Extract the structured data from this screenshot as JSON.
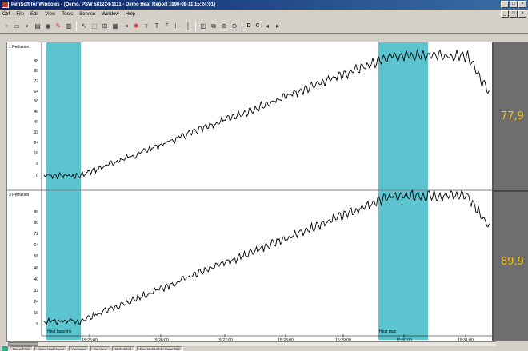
{
  "app": {
    "title": "PeriSoft for Windows - [Demo, PSW 581224-1111 - Demo Heat Report 1996-08-11 15:24:01]"
  },
  "window_controls": [
    "_",
    "□",
    "×"
  ],
  "mdi_controls": [
    "_",
    "□",
    "×"
  ],
  "menu": [
    "Ctrl",
    "File",
    "Edit",
    "View",
    "Tools",
    "Service",
    "Window",
    "Help"
  ],
  "toolbar": {
    "icons": [
      "new-icon",
      "open-icon",
      "save-icon",
      "print-preview-icon",
      "record-icon",
      "marker-icon",
      "print-icon",
      "pointer-icon",
      "select-icon",
      "zoom-box-icon",
      "grid-icon",
      "cursor-icon",
      "mark-icon",
      "text-icon",
      "text-up-icon",
      "text-down-icon",
      "range-icon",
      "crosshair-icon",
      "split-icon",
      "copy-icon",
      "zoom-in-icon",
      "zoom-out-icon"
    ],
    "letters": [
      "D",
      "C"
    ]
  },
  "panels": [
    {
      "label": "1 Perfusion",
      "readout": "77,9",
      "yticks": [
        "88",
        "80",
        "72",
        "64",
        "56",
        "48",
        "40",
        "32",
        "24",
        "16",
        "8",
        "0"
      ]
    },
    {
      "label": "3 Perfusion",
      "readout": "89,9",
      "yticks": [
        "88",
        "80",
        "72",
        "64",
        "56",
        "48",
        "40",
        "32",
        "24",
        "16",
        "8"
      ]
    }
  ],
  "x_ticks": [
    "15:25:00",
    "15:26:00",
    "15:27:00",
    "15:28:00",
    "15:29:00",
    "15:30:00",
    "15:31:00"
  ],
  "bands": [
    {
      "label": "Heat baseline",
      "color": "#5bc4cf"
    },
    {
      "label": "Heat max",
      "color": "#5bc4cf"
    }
  ],
  "status": [
    "Demo  PSW",
    "Demo Heat Report",
    "Perfusion",
    "Rel.Conc",
    "00:07:22:01",
    "Dev. 15.29.17.1 - Value 75.2"
  ]
}
